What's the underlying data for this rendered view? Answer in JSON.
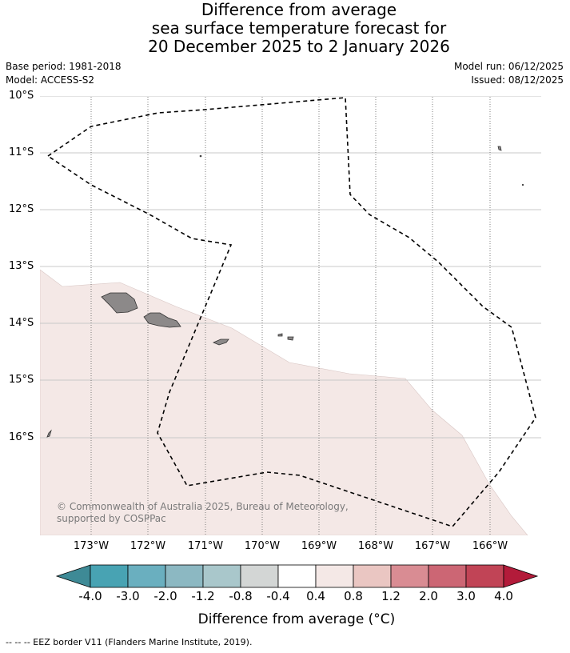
{
  "title": {
    "line1": "Difference from average",
    "line2": "sea surface temperature forecast for",
    "line3": "20 December 2025 to 2 January 2026"
  },
  "meta": {
    "base_period": "Base period: 1981-2018",
    "model": "Model: ACCESS-S2",
    "model_run": "Model run: 06/12/2025",
    "issued": "Issued: 08/12/2025"
  },
  "map": {
    "lat_labels": [
      "10°S",
      "11°S",
      "12°S",
      "13°S",
      "14°S",
      "15°S",
      "16°S"
    ],
    "lon_labels": [
      "173°W",
      "172°W",
      "171°W",
      "170°W",
      "169°W",
      "168°W",
      "167°W",
      "166°W"
    ],
    "anomaly_fill_color": "#f4e8e6",
    "land_color": "#8c8989",
    "eez_line_color": "#000000",
    "copyright": "© Commonwealth of Australia 2025, Bureau of Meteorology, supported by COSPPac"
  },
  "colorbar": {
    "colors": [
      "#3e8a96",
      "#48a3b3",
      "#6aafbf",
      "#8cb8c2",
      "#a9c7cb",
      "#d3d6d5",
      "#ffffff",
      "#f4e8e6",
      "#eac6c2",
      "#d98c93",
      "#cc6674",
      "#c14456",
      "#b31b3a"
    ],
    "tick_labels": [
      "-4.0",
      "-3.0",
      "-2.0",
      "-1.2",
      "-0.8",
      "-0.4",
      "0.4",
      "0.8",
      "1.2",
      "2.0",
      "3.0",
      "4.0"
    ],
    "title": "Difference from average (°C)"
  },
  "footnote": "-- -- -- EEZ border V11 (Flanders Marine Institute, 2019)."
}
